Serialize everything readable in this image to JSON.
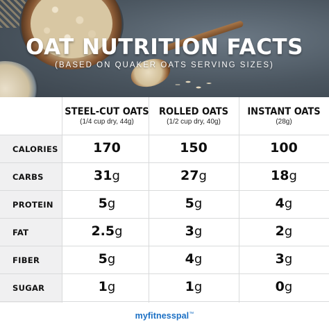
{
  "hero": {
    "title": "OAT NUTRITION FACTS",
    "subtitle": "(BASED ON QUAKER OATS SERVING SIZES)"
  },
  "columns": [
    {
      "name": "STEEL-CUT OATS",
      "serving": "(1/4 cup dry, 44g)"
    },
    {
      "name": "ROLLED OATS",
      "serving": "(1/2 cup dry, 40g)"
    },
    {
      "name": "INSTANT OATS",
      "serving": "(28g)"
    }
  ],
  "rows": [
    {
      "label": "CALORIES",
      "values": [
        {
          "num": "170",
          "unit": ""
        },
        {
          "num": "150",
          "unit": ""
        },
        {
          "num": "100",
          "unit": ""
        }
      ]
    },
    {
      "label": "CARBS",
      "values": [
        {
          "num": "31",
          "unit": "g"
        },
        {
          "num": "27",
          "unit": "g"
        },
        {
          "num": "18",
          "unit": "g"
        }
      ]
    },
    {
      "label": "PROTEIN",
      "values": [
        {
          "num": "5",
          "unit": "g"
        },
        {
          "num": "5",
          "unit": "g"
        },
        {
          "num": "4",
          "unit": "g"
        }
      ]
    },
    {
      "label": "FAT",
      "values": [
        {
          "num": "2.5",
          "unit": "g"
        },
        {
          "num": "3",
          "unit": "g"
        },
        {
          "num": "2",
          "unit": "g"
        }
      ]
    },
    {
      "label": "FIBER",
      "values": [
        {
          "num": "5",
          "unit": "g"
        },
        {
          "num": "4",
          "unit": "g"
        },
        {
          "num": "3",
          "unit": "g"
        }
      ]
    },
    {
      "label": "SUGAR",
      "values": [
        {
          "num": "1",
          "unit": "g"
        },
        {
          "num": "1",
          "unit": "g"
        },
        {
          "num": "0",
          "unit": "g"
        }
      ]
    }
  ],
  "footer": {
    "brand": "myfitnesspal",
    "trademark": "™"
  },
  "colors": {
    "brand": "#1a6fc4",
    "label_band": "#f0f0f1",
    "grid_line": "#d9dadb"
  }
}
